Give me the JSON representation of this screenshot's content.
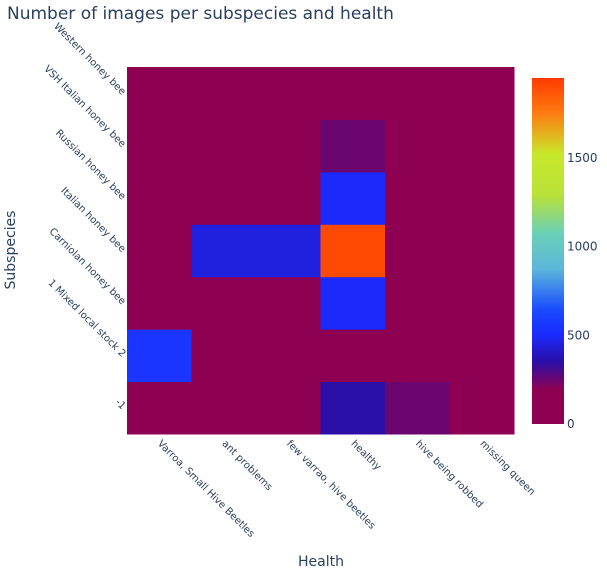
{
  "chart_data": {
    "type": "heatmap",
    "title": "Number of images per subspecies and health",
    "xlabel": "Health",
    "ylabel": "Subspecies",
    "x": [
      "Varroa, Small Hive Beetles",
      "ant problems",
      "few varrao, hive beetles",
      "healthy",
      "hive being robbed",
      "missing queen"
    ],
    "y": [
      "-1",
      "1 Mixed local stock 2",
      "Carniolan honey bee",
      "Italian honey bee",
      "Russian honey bee",
      "VSH Italian honey bee",
      "Western honey bee"
    ],
    "z": [
      [
        0,
        0,
        0,
        350,
        250,
        0
      ],
      [
        550,
        0,
        0,
        0,
        0,
        0
      ],
      [
        0,
        0,
        0,
        500,
        0,
        0
      ],
      [
        0,
        450,
        450,
        1900,
        0,
        0
      ],
      [
        0,
        0,
        0,
        500,
        0,
        0
      ],
      [
        0,
        0,
        0,
        250,
        0,
        0
      ],
      [
        0,
        0,
        0,
        0,
        0,
        0
      ]
    ],
    "colorbar": {
      "ticks": [
        0,
        500,
        1000,
        1500
      ],
      "range": [
        0,
        1950
      ],
      "colorscale": [
        [
          0.0,
          "#8e0152"
        ],
        [
          0.1,
          "#8e0152"
        ],
        [
          0.18,
          "#2a0fa8"
        ],
        [
          0.26,
          "#1a2bff"
        ],
        [
          0.33,
          "#1a4bff"
        ],
        [
          0.45,
          "#5cb8d8"
        ],
        [
          0.55,
          "#6ad0b8"
        ],
        [
          0.66,
          "#b8e23a"
        ],
        [
          0.78,
          "#c8e82a"
        ],
        [
          0.9,
          "#ff7a10"
        ],
        [
          1.0,
          "#ff3a00"
        ]
      ]
    }
  }
}
